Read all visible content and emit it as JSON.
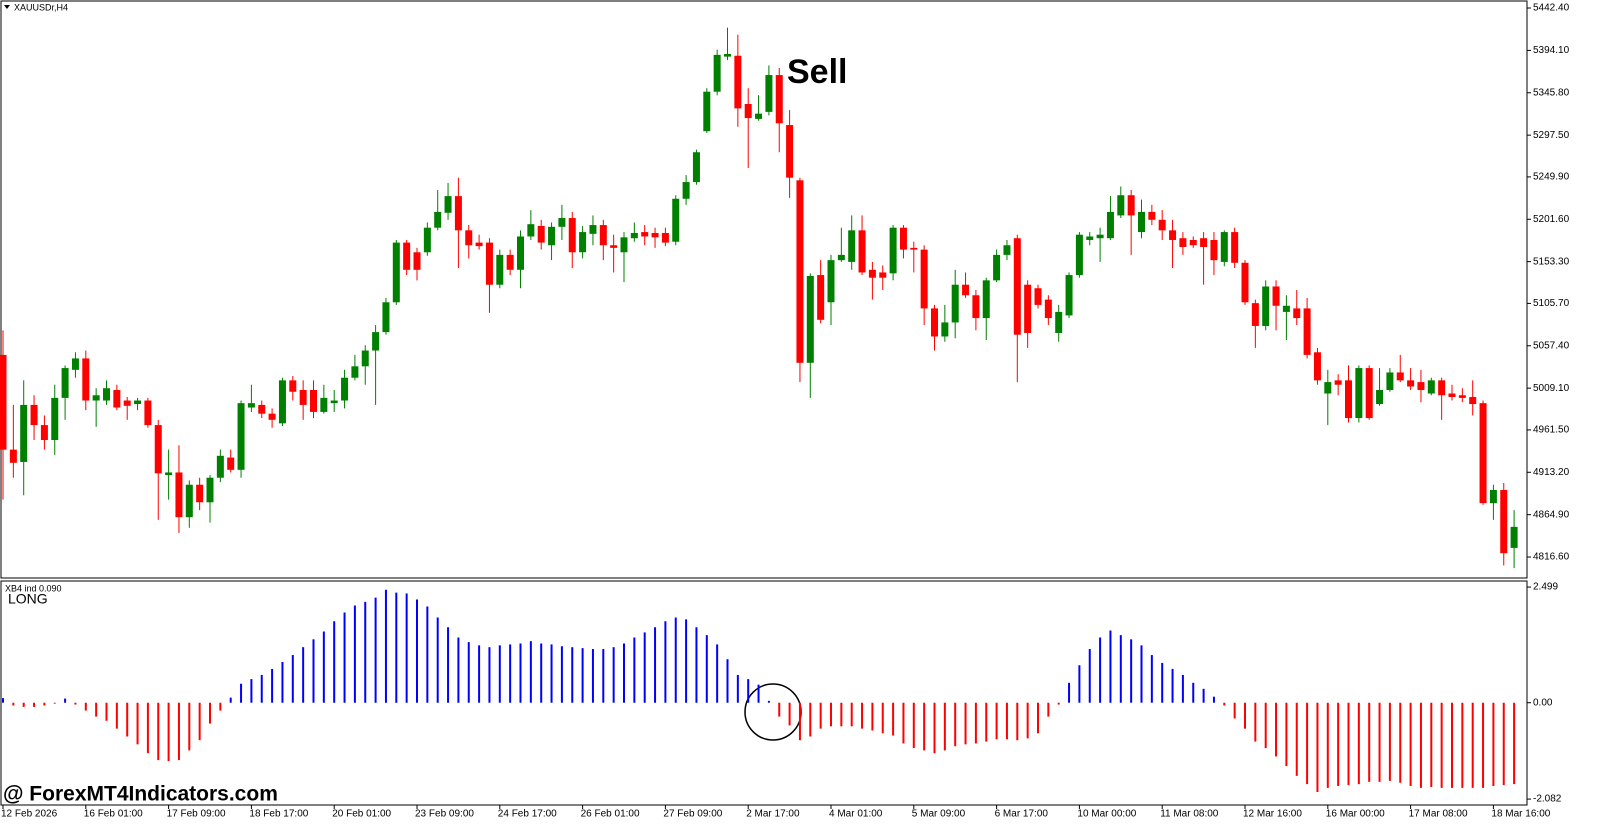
{
  "chart_data": [
    {
      "type": "candlestick",
      "title": "XAUUSDr,H4",
      "annotation": "Sell",
      "categories": [
        "12 Feb 2026",
        null,
        null,
        null,
        null,
        null,
        null,
        null,
        "16 Feb 01:00",
        null,
        null,
        null,
        null,
        null,
        null,
        null,
        "17 Feb 09:00",
        null,
        null,
        null,
        null,
        null,
        null,
        null,
        "18 Feb 17:00",
        null,
        null,
        null,
        null,
        null,
        null,
        null,
        "20 Feb 01:00",
        null,
        null,
        null,
        null,
        null,
        null,
        null,
        "23 Feb 09:00",
        null,
        null,
        null,
        null,
        null,
        null,
        null,
        "24 Feb 17:00",
        null,
        null,
        null,
        null,
        null,
        null,
        null,
        "26 Feb 01:00",
        null,
        null,
        null,
        null,
        null,
        null,
        null,
        "27 Feb 09:00",
        null,
        null,
        null,
        null,
        null,
        null,
        null,
        "2 Mar 17:00",
        null,
        null,
        null,
        null,
        null,
        null,
        null,
        "4 Mar 01:00",
        null,
        null,
        null,
        null,
        null,
        null,
        null,
        "5 Mar 09:00",
        null,
        null,
        null,
        null,
        null,
        null,
        null,
        "6 Mar 17:00",
        null,
        null,
        null,
        null,
        null,
        null,
        null,
        "10 Mar 00:00",
        null,
        null,
        null,
        null,
        null,
        null,
        null,
        "11 Mar 08:00",
        null,
        null,
        null,
        null,
        null,
        null,
        null,
        "12 Mar 16:00",
        null,
        null,
        null,
        null,
        null,
        null,
        null,
        "16 Mar 00:00",
        null,
        null,
        null,
        null,
        null,
        null,
        null,
        "17 Mar 08:00",
        null,
        null,
        null,
        null,
        null,
        null,
        null,
        "18 Mar 16:00",
        null,
        null
      ],
      "open": [
        5047,
        4939,
        4925,
        4990,
        4967,
        4950,
        4998,
        5030,
        5043,
        4995,
        4995,
        5007,
        4995,
        4991,
        4995,
        4967,
        4910,
        4913,
        4862,
        4899,
        4879,
        4907,
        4930,
        4916,
        4987,
        4990,
        4980,
        4969,
        5018,
        5007,
        5007,
        4982,
        4992,
        4995,
        5021,
        5034,
        5052,
        5073,
        5107,
        5175,
        5164,
        5164,
        5192,
        5209,
        5228,
        5189,
        5175,
        5175,
        5127,
        5161,
        5144,
        5182,
        5194,
        5172,
        5193,
        5203,
        5164,
        5185,
        5195,
        5172,
        5164,
        5180,
        5187,
        5186,
        5186,
        5176,
        5225,
        5244,
        5302,
        5347,
        5387,
        5388,
        5333,
        5316,
        5324,
        5366,
        5309,
        5246,
        5038,
        5138,
        5107,
        5155,
        5153,
        5189,
        5144,
        5141,
        5140,
        5192,
        5169,
        5167,
        5100,
        5068,
        5084,
        5127,
        5115,
        5089,
        5132,
        5161,
        5180,
        5127,
        5123,
        5110,
        5072,
        5092,
        5138,
        5178,
        5180,
        5180,
        5206,
        5229,
        5187,
        5210,
        5201,
        5189,
        5180,
        5178,
        5180,
        5178,
        5153,
        5187,
        5152,
        5106,
        5080,
        5125,
        5096,
        5100,
        5100,
        5050,
        5003,
        5018,
        5018,
        4975,
        5032,
        4991,
        5007,
        5027,
        5018,
        5016,
        5003,
        5018,
        5003,
        5001,
        4999,
        4992,
        4878,
        4893,
        4827
      ],
      "high": [
        5075,
        4990,
        5018,
        5001,
        4978,
        5013,
        5035,
        5050,
        5052,
        5009,
        5018,
        5013,
        4999,
        4998,
        4998,
        4973,
        4939,
        4944,
        4904,
        4907,
        4910,
        4939,
        4939,
        4995,
        5013,
        4995,
        4986,
        5021,
        5023,
        5018,
        5018,
        5013,
        5007,
        5030,
        5047,
        5058,
        5081,
        5112,
        5178,
        5178,
        5169,
        5198,
        5235,
        5243,
        5249,
        5195,
        5184,
        5180,
        5167,
        5167,
        5189,
        5212,
        5201,
        5198,
        5218,
        5210,
        5194,
        5206,
        5201,
        5184,
        5187,
        5198,
        5195,
        5192,
        5192,
        5229,
        5252,
        5281,
        5351,
        5395,
        5420,
        5412,
        5351,
        5343,
        5377,
        5374,
        5326,
        5249,
        5140,
        5155,
        5161,
        5192,
        5206,
        5206,
        5153,
        5149,
        5195,
        5195,
        5176,
        5172,
        5104,
        5104,
        5144,
        5141,
        5121,
        5135,
        5167,
        5178,
        5184,
        5132,
        5127,
        5115,
        5104,
        5141,
        5187,
        5187,
        5192,
        5228,
        5239,
        5235,
        5224,
        5218,
        5212,
        5201,
        5187,
        5182,
        5187,
        5187,
        5189,
        5192,
        5155,
        5110,
        5132,
        5132,
        5115,
        5121,
        5112,
        5055,
        5030,
        5025,
        5035,
        5035,
        5035,
        5032,
        5032,
        5047,
        5032,
        5030,
        5021,
        5021,
        5013,
        5009,
        5018,
        4995,
        4899,
        4901,
        4870
      ],
      "low": [
        4882,
        4907,
        4887,
        4950,
        4939,
        4933,
        4973,
        5021,
        4984,
        4965,
        4990,
        4984,
        4973,
        4984,
        4964,
        4859,
        4882,
        4844,
        4850,
        4870,
        4856,
        4902,
        4913,
        4907,
        4982,
        4975,
        4964,
        4966,
        4995,
        4973,
        4975,
        4980,
        4982,
        4986,
        5018,
        5013,
        4990,
        5070,
        5104,
        5138,
        5132,
        5160,
        5189,
        5201,
        5146,
        5157,
        5167,
        5095,
        5123,
        5138,
        5123,
        5178,
        5167,
        5155,
        5178,
        5146,
        5157,
        5172,
        5155,
        5141,
        5130,
        5176,
        5172,
        5169,
        5171,
        5172,
        5218,
        5241,
        5300,
        5343,
        5383,
        5307,
        5260,
        5314,
        5320,
        5278,
        5226,
        5016,
        4998,
        5083,
        5081,
        5153,
        5144,
        5138,
        5110,
        5121,
        5132,
        5157,
        5141,
        5081,
        5052,
        5062,
        5066,
        5112,
        5075,
        5064,
        5130,
        5155,
        5016,
        5055,
        5100,
        5081,
        5062,
        5089,
        5135,
        5172,
        5153,
        5178,
        5203,
        5161,
        5180,
        5195,
        5178,
        5146,
        5161,
        5169,
        5127,
        5138,
        5148,
        5146,
        5104,
        5055,
        5075,
        5075,
        5064,
        5081,
        5043,
        5013,
        4967,
        5001,
        4970,
        4970,
        4973,
        4989,
        5005,
        5016,
        5007,
        4993,
        5001,
        4973,
        4995,
        4993,
        4978,
        4876,
        4859,
        4807,
        4804
      ],
      "close": [
        4939,
        4924,
        4990,
        4967,
        4950,
        4998,
        5032,
        5043,
        4995,
        5001,
        5009,
        4987,
        4989,
        4995,
        4967,
        4912,
        4913,
        4862,
        4899,
        4879,
        4907,
        4932,
        4916,
        4992,
        4992,
        4980,
        4973,
        5018,
        5005,
        4990,
        4982,
        4998,
        4995,
        5021,
        5034,
        5052,
        5073,
        5107,
        5175,
        5144,
        5144,
        5192,
        5210,
        5228,
        5189,
        5172,
        5171,
        5127,
        5161,
        5144,
        5182,
        5196,
        5175,
        5193,
        5203,
        5164,
        5187,
        5195,
        5172,
        5169,
        5181,
        5186,
        5182,
        5181,
        5175,
        5225,
        5244,
        5278,
        5347,
        5389,
        5390,
        5328,
        5317,
        5322,
        5366,
        5311,
        5249,
        5038,
        5137,
        5087,
        5155,
        5161,
        5189,
        5141,
        5135,
        5135,
        5192,
        5167,
        5167,
        5100,
        5068,
        5084,
        5127,
        5115,
        5089,
        5132,
        5161,
        5172,
        5070,
        5072,
        5104,
        5089,
        5096,
        5138,
        5184,
        5182,
        5184,
        5210,
        5229,
        5206,
        5210,
        5201,
        5189,
        5178,
        5170,
        5172,
        5170,
        5155,
        5187,
        5152,
        5107,
        5080,
        5125,
        5103,
        5103,
        5089,
        5047,
        5018,
        5016,
        5013,
        4975,
        5032,
        4975,
        5007,
        5027,
        5018,
        5011,
        5007,
        5018,
        5001,
        4999,
        4998,
        4991,
        4878,
        4893,
        4821,
        4851
      ],
      "up_color": "#008000",
      "down_color": "#ff0000",
      "ylim": [
        4792.7,
        5450.4
      ],
      "yticks": [
        {
          "value": 5442.4,
          "label": "5442.40"
        },
        {
          "value": 5394.1,
          "label": "5394.10"
        },
        {
          "value": 5345.8,
          "label": "5345.80"
        },
        {
          "value": 5297.5,
          "label": "5297.50"
        },
        {
          "value": 5249.9,
          "label": "5249.90"
        },
        {
          "value": 5201.6,
          "label": "5201.60"
        },
        {
          "value": 5153.3,
          "label": "5153.30"
        },
        {
          "value": 5105.7,
          "label": "5105.70"
        },
        {
          "value": 5057.4,
          "label": "5057.40"
        },
        {
          "value": 5009.1,
          "label": "5009.10"
        },
        {
          "value": 4961.5,
          "label": "4961.50"
        },
        {
          "value": 4913.2,
          "label": "4913.20"
        },
        {
          "value": 4864.9,
          "label": "4864.90"
        },
        {
          "value": 4816.6,
          "label": "4816.60"
        }
      ]
    },
    {
      "type": "bar",
      "title": "XB4 ind 0.090",
      "signal": "LONG",
      "signal_color": "#22ee22",
      "values": [
        0.1,
        -0.06,
        -0.09,
        -0.09,
        -0.06,
        -0.02,
        0.09,
        -0.04,
        -0.17,
        -0.3,
        -0.39,
        -0.56,
        -0.73,
        -0.9,
        -1.09,
        -1.24,
        -1.26,
        -1.24,
        -1.03,
        -0.81,
        -0.45,
        -0.17,
        0.11,
        0.41,
        0.51,
        0.6,
        0.73,
        0.88,
        1.03,
        1.2,
        1.37,
        1.54,
        1.76,
        1.95,
        2.1,
        2.18,
        2.27,
        2.44,
        2.38,
        2.36,
        2.23,
        2.08,
        1.84,
        1.63,
        1.41,
        1.31,
        1.24,
        1.2,
        1.24,
        1.26,
        1.28,
        1.33,
        1.28,
        1.26,
        1.22,
        1.2,
        1.18,
        1.16,
        1.16,
        1.2,
        1.28,
        1.41,
        1.52,
        1.63,
        1.76,
        1.84,
        1.8,
        1.63,
        1.46,
        1.26,
        0.94,
        0.6,
        0.51,
        0.39,
        0.04,
        -0.3,
        -0.49,
        -0.81,
        -0.73,
        -0.56,
        -0.51,
        -0.51,
        -0.51,
        -0.56,
        -0.6,
        -0.66,
        -0.71,
        -0.88,
        -0.98,
        -1.03,
        -1.09,
        -1.03,
        -0.94,
        -0.9,
        -0.88,
        -0.84,
        -0.79,
        -0.79,
        -0.81,
        -0.77,
        -0.66,
        -0.3,
        -0.04,
        0.43,
        0.81,
        1.16,
        1.41,
        1.56,
        1.46,
        1.37,
        1.24,
        1.03,
        0.86,
        0.73,
        0.6,
        0.43,
        0.3,
        0.13,
        -0.06,
        -0.34,
        -0.56,
        -0.84,
        -0.98,
        -1.16,
        -1.37,
        -1.58,
        -1.76,
        -1.93,
        -1.84,
        -1.8,
        -1.78,
        -1.76,
        -1.71,
        -1.71,
        -1.69,
        -1.73,
        -1.8,
        -1.84,
        -1.82,
        -1.84,
        -1.84,
        -1.84,
        -1.84,
        -1.84,
        -1.8,
        -1.78,
        -1.76
      ],
      "positive_color": "#0000ff",
      "negative_color": "#ff0000",
      "ylim": [
        -2.21,
        2.63
      ],
      "yticks": [
        2.499,
        {
          "value": 0,
          "label": "0.00"
        },
        -2.082
      ]
    }
  ],
  "watermark": "@ ForexMT4Indicators.com"
}
